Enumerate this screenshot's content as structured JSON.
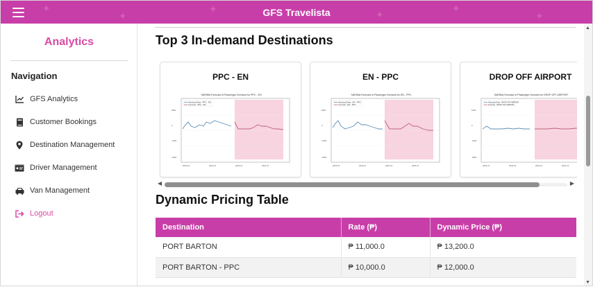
{
  "app": {
    "title": "GFS Travelista"
  },
  "sidebar": {
    "title": "Analytics",
    "nav_heading": "Navigation",
    "items": [
      {
        "label": "GFS Analytics",
        "icon": "chart-line-icon"
      },
      {
        "label": "Customer Bookings",
        "icon": "book-icon"
      },
      {
        "label": "Destination Management",
        "icon": "map-pin-icon"
      },
      {
        "label": "Driver Management",
        "icon": "id-card-icon"
      },
      {
        "label": "Van Management",
        "icon": "car-icon"
      }
    ],
    "logout": {
      "label": "Logout",
      "icon": "logout-icon"
    }
  },
  "main": {
    "destinations_heading": "Top 3 In-demand Destinations",
    "cards": [
      {
        "title": "PPC - EN",
        "chart_title": "SARIMA Forecast of Passenger Demand for PPC - EN",
        "legend": [
          "Historical Data - PPC - EN",
          "Forecast - PPC - EN"
        ]
      },
      {
        "title": "EN - PPC",
        "chart_title": "SARIMA Forecast of Passenger Demand for EN - PPC",
        "legend": [
          "Historical Data - EN - PPC",
          "Forecast - EN - PPC"
        ]
      },
      {
        "title": "DROP OFF AIRPORT",
        "chart_title": "SARIMA Forecast of Passenger Demand for DROP OFF AIRPORT",
        "legend": [
          "Historical Data - DROP OFF AIRPORT",
          "Forecast - DROP OFF AIRPORT"
        ]
      }
    ],
    "pricing_heading": "Dynamic Pricing Table",
    "pricing_table": {
      "headers": [
        "Destination",
        "Rate (₱)",
        "Dynamic Price (₱)"
      ],
      "rows": [
        [
          "PORT BARTON",
          "₱ 11,000.0",
          "₱ 13,200.0"
        ],
        [
          "PORT BARTON - PPC",
          "₱ 10,000.0",
          "₱ 12,000.0"
        ]
      ]
    }
  },
  "colors": {
    "brand": "#c83ea8",
    "accent_pink": "#d94ba6",
    "forecast_band": "#f8d3e0"
  }
}
